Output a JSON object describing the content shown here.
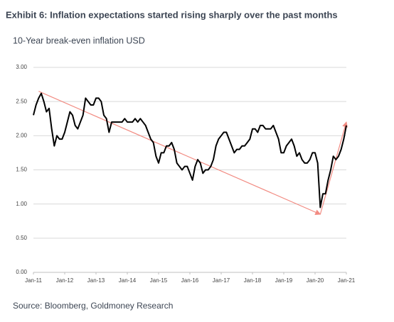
{
  "chart_data": {
    "type": "line",
    "title": "Exhibit 6: Inflation expectations started rising sharply over the past months",
    "subtitle": "10-Year break-even inflation USD",
    "source": "Source: Bloomberg, Goldmoney Research",
    "x": [
      "2011-01",
      "2011-02",
      "2011-03",
      "2011-04",
      "2011-05",
      "2011-06",
      "2011-07",
      "2011-08",
      "2011-09",
      "2011-10",
      "2011-11",
      "2011-12",
      "2012-01",
      "2012-02",
      "2012-03",
      "2012-04",
      "2012-05",
      "2012-06",
      "2012-07",
      "2012-08",
      "2012-09",
      "2012-10",
      "2012-11",
      "2012-12",
      "2013-01",
      "2013-02",
      "2013-03",
      "2013-04",
      "2013-05",
      "2013-06",
      "2013-07",
      "2013-08",
      "2013-09",
      "2013-10",
      "2013-11",
      "2013-12",
      "2014-01",
      "2014-02",
      "2014-03",
      "2014-04",
      "2014-05",
      "2014-06",
      "2014-07",
      "2014-08",
      "2014-09",
      "2014-10",
      "2014-11",
      "2014-12",
      "2015-01",
      "2015-02",
      "2015-03",
      "2015-04",
      "2015-05",
      "2015-06",
      "2015-07",
      "2015-08",
      "2015-09",
      "2015-10",
      "2015-11",
      "2015-12",
      "2016-01",
      "2016-02",
      "2016-03",
      "2016-04",
      "2016-05",
      "2016-06",
      "2016-07",
      "2016-08",
      "2016-09",
      "2016-10",
      "2016-11",
      "2016-12",
      "2017-01",
      "2017-02",
      "2017-03",
      "2017-04",
      "2017-05",
      "2017-06",
      "2017-07",
      "2017-08",
      "2017-09",
      "2017-10",
      "2017-11",
      "2017-12",
      "2018-01",
      "2018-02",
      "2018-03",
      "2018-04",
      "2018-05",
      "2018-06",
      "2018-07",
      "2018-08",
      "2018-09",
      "2018-10",
      "2018-11",
      "2018-12",
      "2019-01",
      "2019-02",
      "2019-03",
      "2019-04",
      "2019-05",
      "2019-06",
      "2019-07",
      "2019-08",
      "2019-09",
      "2019-10",
      "2019-11",
      "2019-12",
      "2020-01",
      "2020-02",
      "2020-03",
      "2020-04",
      "2020-05",
      "2020-06",
      "2020-07",
      "2020-08",
      "2020-09",
      "2020-10",
      "2020-11",
      "2020-12",
      "2021-01"
    ],
    "series": [
      {
        "color": "#000000",
        "values": [
          2.3,
          2.45,
          2.55,
          2.62,
          2.5,
          2.35,
          2.4,
          2.1,
          1.85,
          2.0,
          1.95,
          1.95,
          2.05,
          2.2,
          2.35,
          2.3,
          2.15,
          2.1,
          2.2,
          2.3,
          2.55,
          2.5,
          2.45,
          2.45,
          2.55,
          2.55,
          2.5,
          2.3,
          2.25,
          2.05,
          2.2,
          2.2,
          2.2,
          2.2,
          2.2,
          2.25,
          2.2,
          2.2,
          2.2,
          2.25,
          2.2,
          2.25,
          2.2,
          2.15,
          2.05,
          1.95,
          1.9,
          1.7,
          1.6,
          1.75,
          1.75,
          1.85,
          1.85,
          1.9,
          1.8,
          1.6,
          1.55,
          1.5,
          1.55,
          1.55,
          1.45,
          1.35,
          1.55,
          1.65,
          1.6,
          1.45,
          1.5,
          1.5,
          1.55,
          1.65,
          1.85,
          1.95,
          2.0,
          2.05,
          2.05,
          1.95,
          1.85,
          1.75,
          1.8,
          1.8,
          1.85,
          1.85,
          1.9,
          1.95,
          2.1,
          2.1,
          2.05,
          2.15,
          2.15,
          2.1,
          2.1,
          2.1,
          2.15,
          2.05,
          1.95,
          1.75,
          1.75,
          1.85,
          1.9,
          1.95,
          1.85,
          1.7,
          1.75,
          1.65,
          1.6,
          1.6,
          1.65,
          1.75,
          1.75,
          1.6,
          0.95,
          1.15,
          1.15,
          1.35,
          1.5,
          1.7,
          1.65,
          1.7,
          1.8,
          1.95,
          2.15
        ]
      }
    ],
    "arrows": [
      {
        "color": "#f28b82",
        "x": [
          "2011-03",
          "2020-03"
        ],
        "y": [
          2.65,
          0.85
        ]
      },
      {
        "color": "#f28b82",
        "x": [
          "2020-03",
          "2021-01"
        ],
        "y": [
          0.85,
          2.2
        ]
      }
    ],
    "xlim": [
      "2011-01",
      "2021-01"
    ],
    "xticks": [
      {
        "value": "2011-01",
        "label": "Jan-11"
      },
      {
        "value": "2012-01",
        "label": "Jan-12"
      },
      {
        "value": "2013-01",
        "label": "Jan-13"
      },
      {
        "value": "2014-01",
        "label": "Jan-14"
      },
      {
        "value": "2015-01",
        "label": "Jan-15"
      },
      {
        "value": "2016-01",
        "label": "Jan-16"
      },
      {
        "value": "2017-01",
        "label": "Jan-17"
      },
      {
        "value": "2018-01",
        "label": "Jan-18"
      },
      {
        "value": "2019-01",
        "label": "Jan-19"
      },
      {
        "value": "2020-01",
        "label": "Jan-20"
      },
      {
        "value": "2021-01",
        "label": "Jan-21"
      }
    ],
    "ylim": [
      0,
      3
    ],
    "yticks": [
      {
        "value": 0,
        "label": "0.00"
      },
      {
        "value": 0.5,
        "label": "0.50"
      },
      {
        "value": 1,
        "label": "1.00"
      },
      {
        "value": 1.5,
        "label": "1.50"
      },
      {
        "value": 2,
        "label": "2.00"
      },
      {
        "value": 2.5,
        "label": "2.50"
      },
      {
        "value": 3,
        "label": "3.00"
      }
    ],
    "grid": true
  }
}
